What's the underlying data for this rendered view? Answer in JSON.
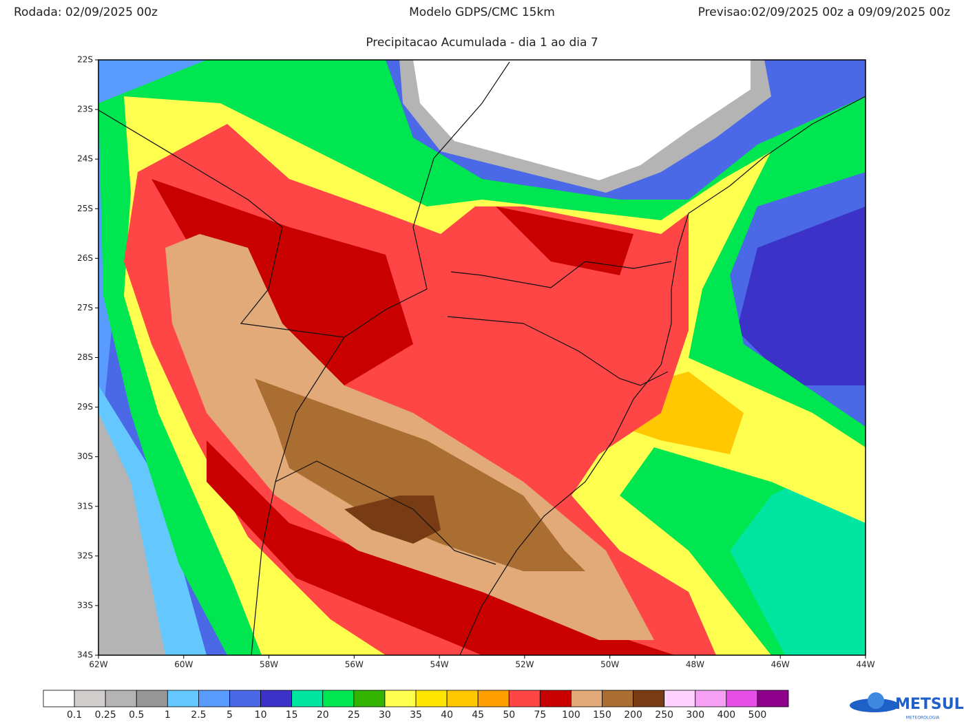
{
  "header": {
    "left": "Rodada: 02/09/2025 00z",
    "center": "Modelo GDPS/CMC 15km",
    "right": "Previsao:02/09/2025 00z a 09/09/2025 00z",
    "subtitle": "Precipitacao Acumulada - dia 1 ao dia 7"
  },
  "map": {
    "lat_ticks": [
      "22S",
      "23S",
      "24S",
      "25S",
      "26S",
      "27S",
      "28S",
      "29S",
      "30S",
      "31S",
      "32S",
      "33S",
      "34S"
    ],
    "lon_ticks": [
      "62W",
      "60W",
      "58W",
      "56W",
      "54W",
      "52W",
      "50W",
      "48W",
      "46W",
      "44W"
    ]
  },
  "colorbar": {
    "colors": [
      "#ffffff",
      "#d2cdcd",
      "#b4b4b4",
      "#969696",
      "#64c8ff",
      "#5a9bff",
      "#4b69e6",
      "#3c32c8",
      "#00e6a0",
      "#00e650",
      "#32b400",
      "#ffff50",
      "#ffe600",
      "#ffc800",
      "#ffa000",
      "#ff4646",
      "#c80000",
      "#e1aa78",
      "#aa6e32",
      "#783c14",
      "#ffd2ff",
      "#f5a0f5",
      "#e650e6",
      "#8c008c"
    ],
    "labels": [
      "0.1",
      "0.25",
      "0.5",
      "1",
      "2.5",
      "5",
      "10",
      "15",
      "20",
      "25",
      "30",
      "35",
      "40",
      "45",
      "50",
      "75",
      "100",
      "150",
      "200",
      "250",
      "300",
      "400",
      "500"
    ]
  },
  "logo": {
    "name": "METSUL",
    "sub": "METEOROLOGIA"
  }
}
